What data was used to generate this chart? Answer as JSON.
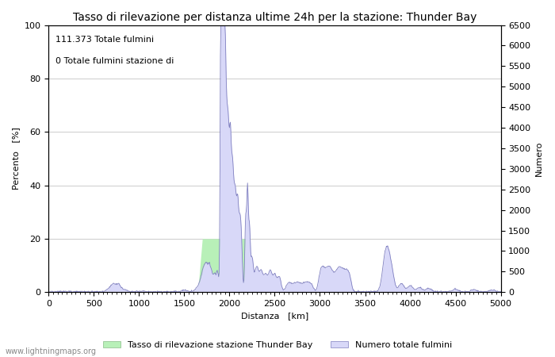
{
  "title": "Tasso di rilevazione per distanza ultime 24h per la stazione: Thunder Bay",
  "xlabel": "Distanza   [km]",
  "ylabel_left": "Percento   [%]",
  "ylabel_right": "Numero",
  "annotation_line1": "111.373 Totale fulmini",
  "annotation_line2": "0 Totale fulmini stazione di",
  "xlim": [
    0,
    5000
  ],
  "ylim_left": [
    0,
    100
  ],
  "ylim_right": [
    0,
    6500
  ],
  "xticks": [
    0,
    500,
    1000,
    1500,
    2000,
    2500,
    3000,
    3500,
    4000,
    4500,
    5000
  ],
  "yticks_left": [
    0,
    20,
    40,
    60,
    80,
    100
  ],
  "yticks_right": [
    0,
    500,
    1000,
    1500,
    2000,
    2500,
    3000,
    3500,
    4000,
    4500,
    5000,
    5500,
    6000,
    6500
  ],
  "legend_label_green": "Tasso di rilevazione stazione Thunder Bay",
  "legend_label_blue": "Numero totale fulmini",
  "watermark": "www.lightningmaps.org",
  "fill_green_color": "#b8f0b8",
  "fill_blue_color": "#d8d8f8",
  "line_blue_color": "#8080c0",
  "background_color": "#ffffff",
  "grid_color": "#cccccc",
  "title_fontsize": 10,
  "label_fontsize": 8,
  "tick_fontsize": 8,
  "annotation_fontsize": 8
}
